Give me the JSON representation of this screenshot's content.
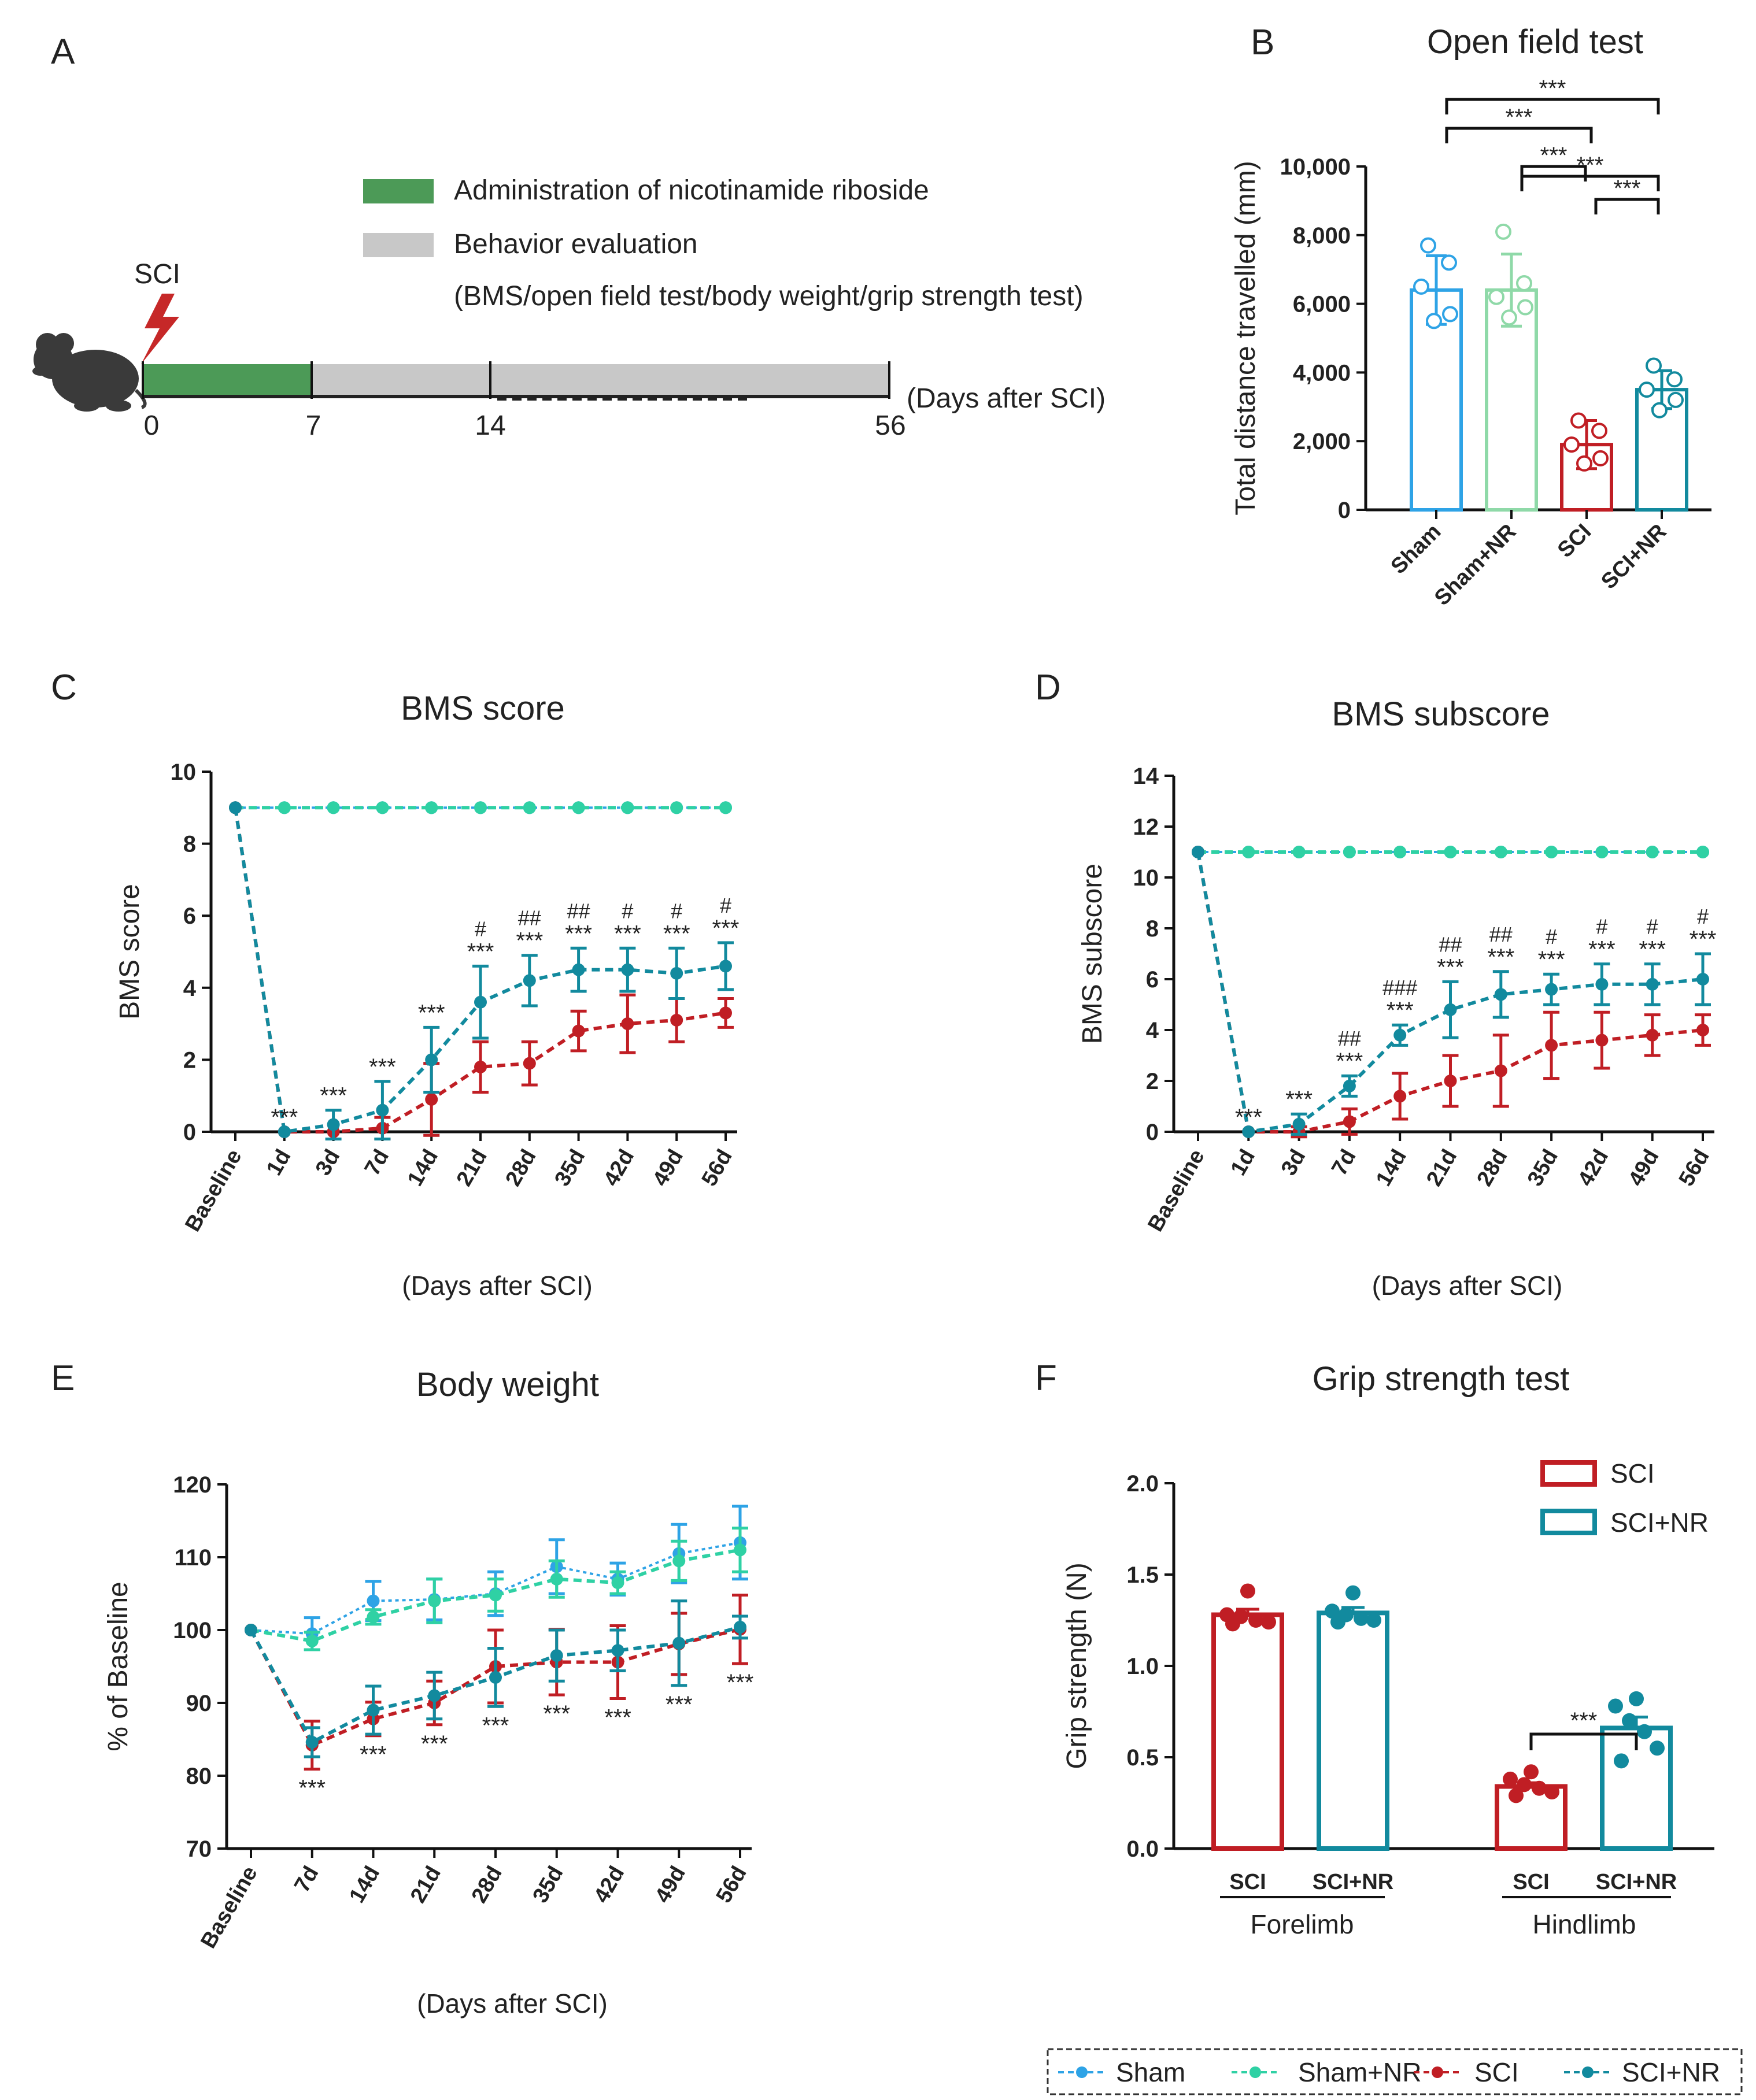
{
  "colors": {
    "sham": "#2ea3e6",
    "sham_nr": "#2fd1a4",
    "sham_nr_bar": "#8fd9a8",
    "sci": "#c01e24",
    "sci_nr": "#128a9e",
    "green": "#4c9a57",
    "gray": "#c8c8c8",
    "bolt": "#c62828"
  },
  "panels": {
    "a": "A",
    "b": "B",
    "c": "C",
    "d": "D",
    "e": "E",
    "f": "F"
  },
  "timeline": {
    "sci_label": "SCI",
    "legend_admin": "Administration of nicotinamide riboside",
    "legend_behavior": "Behavior evaluation",
    "legend_tests": "(BMS/open field test/body weight/grip strength test)",
    "ticks": [
      "0",
      "7",
      "14",
      "56"
    ],
    "axis_label": "(Days after SCI)",
    "mouse_icon": "mouse-icon",
    "bolt_icon": "lightning-icon"
  },
  "legend": {
    "items": [
      "Sham",
      "Sham+NR",
      "SCI",
      "SCI+NR"
    ]
  },
  "chart_data": [
    {
      "id": "B",
      "type": "bar",
      "title": "Open field test",
      "ylabel": "Total distance travelled (mm)",
      "ylim": [
        0,
        10000
      ],
      "yticks": [
        "0",
        "2,000",
        "4,000",
        "6,000",
        "8,000",
        "10,000"
      ],
      "categories": [
        "Sham",
        "Sham+NR",
        "SCI",
        "SCI+NR"
      ],
      "values": [
        6400,
        6400,
        1900,
        3500
      ],
      "errors": [
        1000,
        1050,
        700,
        550
      ],
      "points": [
        [
          7700,
          7200,
          6500,
          5700,
          5500
        ],
        [
          8100,
          6600,
          6200,
          5900,
          5600
        ],
        [
          2600,
          2300,
          1900,
          1500,
          1350
        ],
        [
          4200,
          3800,
          3500,
          3200,
          2900
        ]
      ],
      "significance": [
        {
          "from": 0,
          "to": 3,
          "label": "***"
        },
        {
          "from": 0,
          "to": 2,
          "label": "***"
        },
        {
          "from": 1,
          "to": 3,
          "label": "***"
        },
        {
          "from": 1,
          "to": 2,
          "label": "***"
        },
        {
          "from": 2,
          "to": 3,
          "label": "***"
        }
      ]
    },
    {
      "id": "C",
      "type": "line",
      "title": "BMS score",
      "ylabel": "BMS score",
      "xlabel": "(Days after SCI)",
      "ylim": [
        0,
        10
      ],
      "yticks": [
        "0",
        "2",
        "4",
        "6",
        "8",
        "10"
      ],
      "categories": [
        "Baseline",
        "1d",
        "3d",
        "7d",
        "14d",
        "21d",
        "28d",
        "35d",
        "42d",
        "49d",
        "56d"
      ],
      "series": [
        {
          "name": "Sham",
          "values": [
            9,
            9,
            9,
            9,
            9,
            9,
            9,
            9,
            9,
            9,
            9
          ]
        },
        {
          "name": "Sham+NR",
          "values": [
            9,
            9,
            9,
            9,
            9,
            9,
            9,
            9,
            9,
            9,
            9
          ]
        },
        {
          "name": "SCI",
          "values": [
            9,
            0,
            0,
            0.1,
            0.9,
            1.8,
            1.9,
            2.8,
            3.0,
            3.1,
            3.3
          ],
          "errors": [
            0,
            0,
            0,
            0.3,
            1.0,
            0.7,
            0.6,
            0.55,
            0.8,
            0.6,
            0.4
          ]
        },
        {
          "name": "SCI+NR",
          "values": [
            9,
            0,
            0.2,
            0.6,
            2.0,
            3.6,
            4.2,
            4.5,
            4.5,
            4.4,
            4.6
          ],
          "errors": [
            0,
            0,
            0.4,
            0.8,
            0.9,
            1.0,
            0.7,
            0.6,
            0.6,
            0.7,
            0.65
          ]
        }
      ],
      "sig_stars": [
        "",
        "***",
        "***",
        "***",
        "***",
        "***",
        "***",
        "***",
        "***",
        "***",
        "***"
      ],
      "sig_hash": [
        "",
        "",
        "",
        "",
        "",
        "#",
        "##",
        "##",
        "#",
        "#",
        "#"
      ]
    },
    {
      "id": "D",
      "type": "line",
      "title": "BMS subscore",
      "ylabel": "BMS subscore",
      "xlabel": "(Days after SCI)",
      "ylim": [
        0,
        14
      ],
      "yticks": [
        "0",
        "2",
        "4",
        "6",
        "8",
        "10",
        "12",
        "14"
      ],
      "categories": [
        "Baseline",
        "1d",
        "3d",
        "7d",
        "14d",
        "21d",
        "28d",
        "35d",
        "42d",
        "49d",
        "56d"
      ],
      "series": [
        {
          "name": "Sham",
          "values": [
            11,
            11,
            11,
            11,
            11,
            11,
            11,
            11,
            11,
            11,
            11
          ]
        },
        {
          "name": "Sham+NR",
          "values": [
            11,
            11,
            11,
            11,
            11,
            11,
            11,
            11,
            11,
            11,
            11
          ]
        },
        {
          "name": "SCI",
          "values": [
            11,
            0,
            0,
            0.4,
            1.4,
            2.0,
            2.4,
            3.4,
            3.6,
            3.8,
            4.0
          ],
          "errors": [
            0,
            0,
            0.2,
            0.5,
            0.9,
            1.0,
            1.4,
            1.3,
            1.1,
            0.8,
            0.6
          ]
        },
        {
          "name": "SCI+NR",
          "values": [
            11,
            0,
            0.3,
            1.8,
            3.8,
            4.8,
            5.4,
            5.6,
            5.8,
            5.8,
            6.0
          ],
          "errors": [
            0,
            0,
            0.4,
            0.4,
            0.4,
            1.1,
            0.9,
            0.6,
            0.8,
            0.8,
            1.0
          ]
        }
      ],
      "sig_stars": [
        "",
        "***",
        "***",
        "***",
        "***",
        "***",
        "***",
        "***",
        "***",
        "***",
        "***"
      ],
      "sig_hash": [
        "",
        "",
        "",
        "##",
        "###",
        "##",
        "##",
        "#",
        "#",
        "#",
        "#"
      ]
    },
    {
      "id": "E",
      "type": "line",
      "title": "Body weight",
      "ylabel": "% of Baseline",
      "xlabel": "(Days after SCI)",
      "ylim": [
        70,
        120
      ],
      "yticks": [
        "70",
        "80",
        "90",
        "100",
        "110",
        "120"
      ],
      "categories": [
        "Baseline",
        "7d",
        "14d",
        "21d",
        "28d",
        "35d",
        "42d",
        "49d",
        "56d"
      ],
      "series": [
        {
          "name": "Sham",
          "values": [
            100,
            99.5,
            104,
            104.2,
            105,
            108.7,
            107,
            110.5,
            112
          ],
          "errors": [
            0,
            2.2,
            2.7,
            2.8,
            3.0,
            3.7,
            2.2,
            4.0,
            5.0
          ]
        },
        {
          "name": "Sham+NR",
          "values": [
            100,
            98.5,
            101.8,
            104,
            104.8,
            107,
            106.5,
            109.5,
            111
          ],
          "errors": [
            0,
            1.2,
            1.0,
            3.0,
            2.2,
            2.5,
            1.5,
            2.7,
            3.0
          ]
        },
        {
          "name": "SCI",
          "values": [
            100,
            84.2,
            87.8,
            90,
            95,
            95.6,
            95.6,
            98.1,
            100.1
          ],
          "errors": [
            0,
            3.3,
            2.3,
            3.0,
            5.0,
            4.5,
            5.0,
            4.2,
            4.7
          ]
        },
        {
          "name": "SCI+NR",
          "values": [
            100,
            84.6,
            89,
            91,
            93.5,
            96.5,
            97.2,
            98.2,
            100.4
          ],
          "errors": [
            0,
            2.0,
            3.3,
            3.2,
            4.0,
            3.5,
            2.8,
            5.8,
            1.5
          ]
        }
      ],
      "sig_stars": [
        "",
        "***",
        "***",
        "***",
        "***",
        "***",
        "***",
        "***",
        "***"
      ]
    },
    {
      "id": "F",
      "type": "bar",
      "title": "Grip strength test",
      "ylabel": "Grip strength (N)",
      "ylim": [
        0,
        2.0
      ],
      "yticks": [
        "0.0",
        "0.5",
        "1.0",
        "1.5",
        "2.0"
      ],
      "groups": [
        "Forelimb",
        "Hindlimb"
      ],
      "bar_labels": [
        "SCI",
        "SCI+NR",
        "SCI",
        "SCI+NR"
      ],
      "series_legend": [
        "SCI",
        "SCI+NR"
      ],
      "values": [
        1.28,
        1.29,
        0.34,
        0.66
      ],
      "errors": [
        0.03,
        0.03,
        0.02,
        0.06
      ],
      "points": [
        [
          1.41,
          1.28,
          1.27,
          1.25,
          1.24,
          1.23
        ],
        [
          1.4,
          1.3,
          1.28,
          1.26,
          1.25,
          1.24
        ],
        [
          0.42,
          0.38,
          0.35,
          0.33,
          0.31,
          0.29
        ],
        [
          0.82,
          0.78,
          0.7,
          0.64,
          0.55,
          0.48
        ]
      ],
      "significance": [
        {
          "from": 2,
          "to": 3,
          "label": "***"
        }
      ]
    }
  ]
}
